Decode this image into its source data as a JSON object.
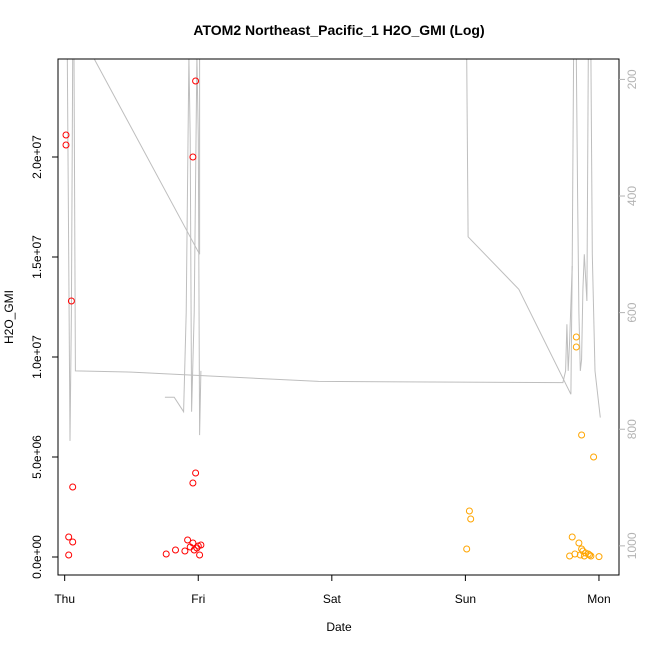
{
  "chart_data": {
    "type": "scatter",
    "title": "ATOM2 Northeast_Pacific_1 H2O_GMI (Log)",
    "xlabel": "Date",
    "ylabel": "H2O_GMI",
    "x_ticks": [
      "Thu",
      "Fri",
      "Sat",
      "Sun",
      "Mon"
    ],
    "xlim": [
      -0.05,
      4.15
    ],
    "y_ticks": [
      "0.0e+00",
      "5.0e+06",
      "1.0e+07",
      "1.5e+07",
      "2.0e+07"
    ],
    "ylim": [
      -900000,
      24900000
    ],
    "y2_ticks": [
      "200",
      "400",
      "600",
      "800",
      "1000"
    ],
    "y2lim_top_to_bottom": [
      165,
      1050
    ],
    "grid": false,
    "series": [
      {
        "color": "#ff0000",
        "points": [
          [
            0.01,
            21100000
          ],
          [
            0.01,
            20600000
          ],
          [
            0.05,
            12800000
          ],
          [
            0.06,
            3500000
          ],
          [
            0.03,
            1000000
          ],
          [
            0.06,
            750000
          ],
          [
            0.03,
            100000
          ],
          [
            0.96,
            20000000
          ],
          [
            0.98,
            23800000
          ],
          [
            0.96,
            3700000
          ],
          [
            0.98,
            4200000
          ],
          [
            0.76,
            150000
          ],
          [
            0.83,
            350000
          ],
          [
            0.9,
            300000
          ],
          [
            0.92,
            850000
          ],
          [
            0.94,
            500000
          ],
          [
            0.96,
            700000
          ],
          [
            0.97,
            350000
          ],
          [
            0.99,
            450000
          ],
          [
            1.0,
            550000
          ],
          [
            1.01,
            100000
          ],
          [
            1.02,
            600000
          ]
        ]
      },
      {
        "color": "#ffa500",
        "points": [
          [
            3.03,
            2300000
          ],
          [
            3.04,
            1900000
          ],
          [
            3.01,
            400000
          ],
          [
            3.83,
            11000000
          ],
          [
            3.83,
            10500000
          ],
          [
            3.87,
            6100000
          ],
          [
            3.96,
            5000000
          ],
          [
            3.8,
            1000000
          ],
          [
            3.85,
            700000
          ],
          [
            3.87,
            400000
          ],
          [
            3.88,
            300000
          ],
          [
            3.9,
            200000
          ],
          [
            3.92,
            150000
          ],
          [
            3.93,
            100000
          ],
          [
            3.82,
            150000
          ],
          [
            3.86,
            100000
          ],
          [
            3.89,
            50000
          ],
          [
            3.94,
            50000
          ],
          [
            3.78,
            50000
          ],
          [
            4.0,
            20000
          ]
        ]
      }
    ],
    "pressure_line": {
      "color": "#bebebe",
      "y2_units": "pressure",
      "segments": [
        [
          [
            0.02,
            160
          ],
          [
            0.03,
            500
          ],
          [
            0.04,
            820
          ],
          [
            0.05,
            600
          ],
          [
            0.06,
            160
          ]
        ],
        [
          [
            0.07,
            160
          ],
          [
            0.08,
            700
          ],
          [
            0.5,
            702
          ],
          [
            1.9,
            718
          ],
          [
            3.73,
            720
          ],
          [
            3.75,
            700
          ],
          [
            3.76,
            620
          ],
          [
            3.77,
            700
          ],
          [
            3.78,
            650
          ],
          [
            3.8,
            520
          ],
          [
            3.81,
            160
          ]
        ],
        [
          [
            3.83,
            160
          ],
          [
            3.84,
            400
          ],
          [
            3.85,
            600
          ],
          [
            3.86,
            700
          ],
          [
            3.87,
            680
          ],
          [
            3.88,
            560
          ],
          [
            3.89,
            500
          ],
          [
            3.91,
            580
          ],
          [
            3.92,
            160
          ],
          [
            3.94,
            160
          ],
          [
            3.95,
            500
          ],
          [
            3.97,
            700
          ],
          [
            4.01,
            780
          ]
        ],
        [
          [
            0.21,
            160
          ],
          [
            1.01,
            500
          ],
          [
            1.01,
            160
          ]
        ],
        [
          [
            0.75,
            745
          ],
          [
            0.82,
            745
          ],
          [
            0.89,
            770
          ],
          [
            0.91,
            600
          ],
          [
            0.93,
            160
          ],
          [
            0.94,
            300
          ],
          [
            0.95,
            770
          ],
          [
            0.97,
            600
          ],
          [
            0.99,
            160
          ],
          [
            1.0,
            300
          ],
          [
            1.01,
            810
          ],
          [
            1.02,
            700
          ]
        ],
        [
          [
            3.01,
            160
          ],
          [
            3.02,
            470
          ],
          [
            3.4,
            560
          ],
          [
            3.79,
            740
          ],
          [
            3.8,
            520
          ]
        ]
      ]
    }
  }
}
